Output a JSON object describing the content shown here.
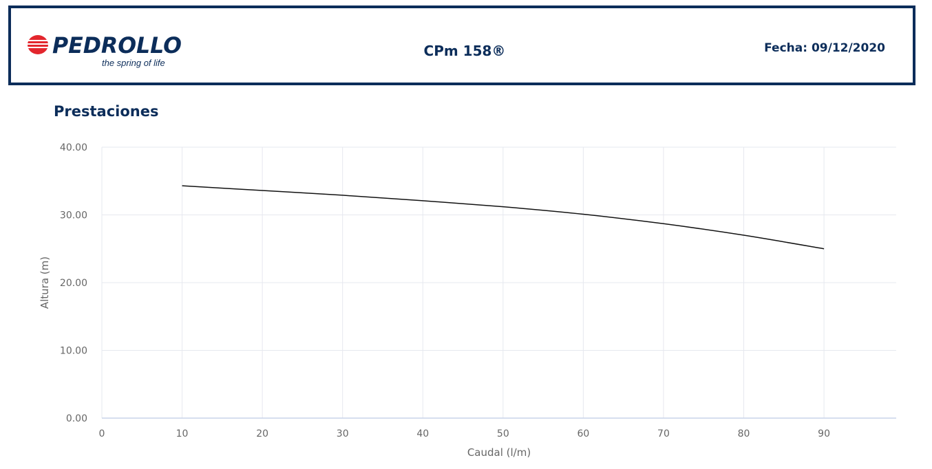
{
  "header": {
    "brand": "PEDROLLO",
    "tagline": "the spring of life",
    "model": "CPm 158®",
    "date": "Fecha: 09/12/2020"
  },
  "section_title": "Prestaciones",
  "colors": {
    "brand_navy": "#0c2d5a",
    "logo_red": "#e3262d",
    "grid": "#e6e8ef",
    "axis": "#c9d3ea",
    "curve": "#111111"
  },
  "chart_data": {
    "type": "line",
    "xlabel": "Caudal (l/m)",
    "ylabel": "Altura (m)",
    "xlim": [
      0,
      99
    ],
    "ylim": [
      0,
      40
    ],
    "x_ticks": [
      0,
      10,
      20,
      30,
      40,
      50,
      60,
      70,
      80,
      90
    ],
    "x_tick_labels": [
      "0",
      "10",
      "20",
      "30",
      "40",
      "50",
      "60",
      "70",
      "80",
      "90"
    ],
    "y_ticks": [
      0,
      10,
      20,
      30,
      40
    ],
    "y_tick_labels": [
      "0.00",
      "10.00",
      "20.00",
      "30.00",
      "40.00"
    ],
    "grid": true,
    "series": [
      {
        "x": [
          10,
          20,
          30,
          40,
          50,
          60,
          70,
          80,
          90
        ],
        "y": [
          34.3,
          33.6,
          32.9,
          32.1,
          31.2,
          30.1,
          28.7,
          27.0,
          25.0
        ]
      }
    ]
  }
}
